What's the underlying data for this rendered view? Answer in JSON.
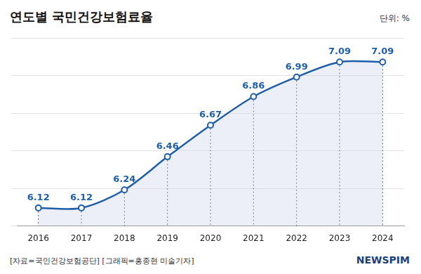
{
  "chart_data": {
    "type": "line",
    "title": "연도별 국민건강보험료율",
    "unit_label": "단위: %",
    "source": "[자료=국민건강보험공단] [그래픽=홍종현 미술기자]",
    "logo": "NEWSPIM",
    "categories": [
      "2016",
      "2017",
      "2018",
      "2019",
      "2020",
      "2021",
      "2022",
      "2023",
      "2024"
    ],
    "values": [
      6.12,
      6.12,
      6.24,
      6.46,
      6.67,
      6.86,
      6.99,
      7.09,
      7.09
    ],
    "color": "#1f5fa8",
    "marker": "circle",
    "ylim": [
      6,
      7.25
    ],
    "yticks": [
      6,
      6.25,
      6.5,
      6.75,
      7,
      7.25
    ],
    "grid": true,
    "data_labels": true,
    "tick_labels": "x"
  }
}
